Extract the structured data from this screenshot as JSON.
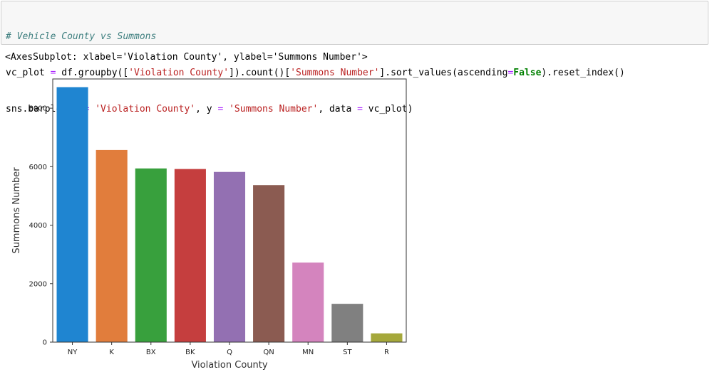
{
  "code_cell": {
    "lines": [
      [
        {
          "t": "# Vehicle County vs Summons",
          "c": "cm-comment"
        }
      ],
      [
        {
          "t": "vc_plot "
        },
        {
          "t": "=",
          "c": "cm-op"
        },
        {
          "t": " df.groupby(["
        },
        {
          "t": "'Violation County'",
          "c": "cm-string"
        },
        {
          "t": "]).count()["
        },
        {
          "t": "'Summons Number'",
          "c": "cm-string"
        },
        {
          "t": "].sort_values(ascending"
        },
        {
          "t": "=",
          "c": "cm-op"
        },
        {
          "t": "False",
          "c": "cm-keyword"
        },
        {
          "t": ").reset_index()"
        }
      ],
      [
        {
          "t": "sns.barplot(x "
        },
        {
          "t": "=",
          "c": "cm-op"
        },
        {
          "t": " "
        },
        {
          "t": "'Violation County'",
          "c": "cm-string"
        },
        {
          "t": ", y "
        },
        {
          "t": "=",
          "c": "cm-op"
        },
        {
          "t": " "
        },
        {
          "t": "'Summons Number'",
          "c": "cm-string"
        },
        {
          "t": ", data "
        },
        {
          "t": "=",
          "c": "cm-op"
        },
        {
          "t": " vc_plot)"
        }
      ]
    ]
  },
  "output": {
    "text": "<AxesSubplot: xlabel='Violation County', ylabel='Summons Number'>"
  },
  "chart_data": {
    "type": "bar",
    "categories": [
      "NY",
      "K",
      "BX",
      "BK",
      "Q",
      "QN",
      "MN",
      "ST",
      "R"
    ],
    "values": [
      8720,
      6570,
      5940,
      5920,
      5820,
      5370,
      2720,
      1310,
      300
    ],
    "colors": [
      "#1f85d1",
      "#e17d3c",
      "#38a03d",
      "#c53e3e",
      "#9370b2",
      "#8b5b51",
      "#d484be",
      "#808080",
      "#a5a83b"
    ],
    "xlabel": "Violation County",
    "ylabel": "Summons Number",
    "ylim": [
      0,
      9000
    ],
    "yticks": [
      0,
      2000,
      4000,
      6000,
      8000
    ],
    "grid": false,
    "legend": "none"
  }
}
